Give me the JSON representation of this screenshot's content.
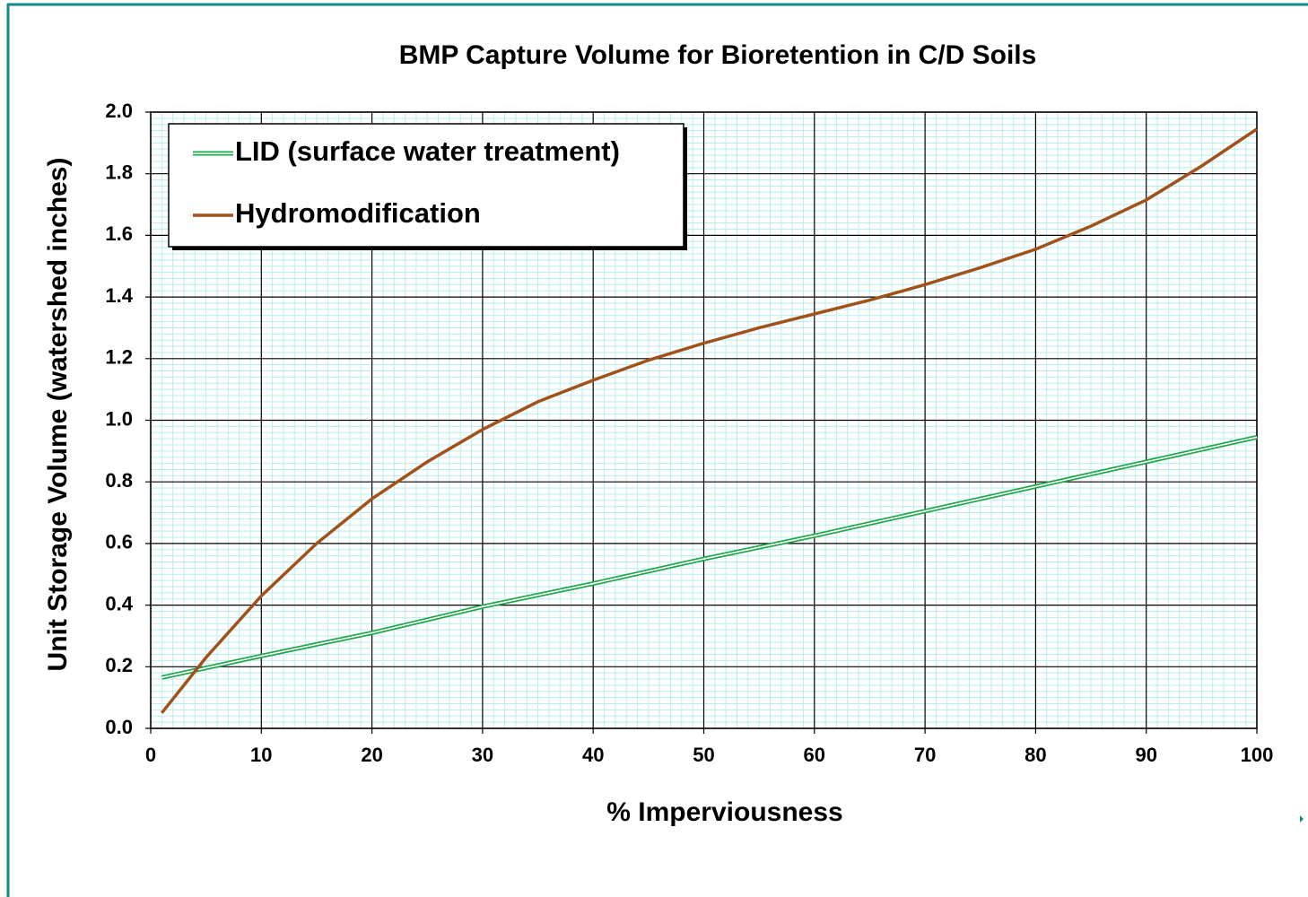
{
  "chart_data": {
    "type": "line",
    "title": "BMP Capture Volume for Bioretention in C/D Soils",
    "x_label": "% Imperviousness",
    "y_label": "Unit Storage Volume (watershed inches)",
    "series": [
      {
        "name": "LID (surface water treatment)",
        "color": "#1fa64a",
        "x": [
          1,
          10,
          20,
          30,
          40,
          50,
          60,
          70,
          80,
          90,
          100
        ],
        "values": [
          0.165,
          0.235,
          0.31,
          0.395,
          0.47,
          0.55,
          0.625,
          0.705,
          0.785,
          0.865,
          0.945
        ]
      },
      {
        "name": "Hydromodification",
        "color": "#a0521a",
        "x": [
          1,
          5,
          10,
          15,
          20,
          25,
          30,
          35,
          40,
          45,
          50,
          55,
          60,
          65,
          70,
          75,
          80,
          85,
          90,
          95,
          100
        ],
        "values": [
          0.05,
          0.23,
          0.43,
          0.6,
          0.745,
          0.865,
          0.97,
          1.06,
          1.13,
          1.195,
          1.25,
          1.3,
          1.345,
          1.39,
          1.44,
          1.495,
          1.555,
          1.63,
          1.715,
          1.825,
          1.945
        ]
      }
    ],
    "xlim": [
      0,
      100
    ],
    "xticks": [
      0,
      10,
      20,
      30,
      40,
      50,
      60,
      70,
      80,
      90,
      100
    ],
    "ylim": [
      0,
      2
    ],
    "yticks": [
      {
        "value": 0,
        "label": "0.0"
      },
      0.2,
      0.4,
      0.6,
      0.8,
      {
        "value": 1,
        "label": "1.0"
      },
      1.2,
      1.4,
      1.6,
      1.8,
      {
        "value": 2,
        "label": "2.0"
      }
    ],
    "grid": true,
    "minor_grid": true,
    "legend": "upper left"
  }
}
